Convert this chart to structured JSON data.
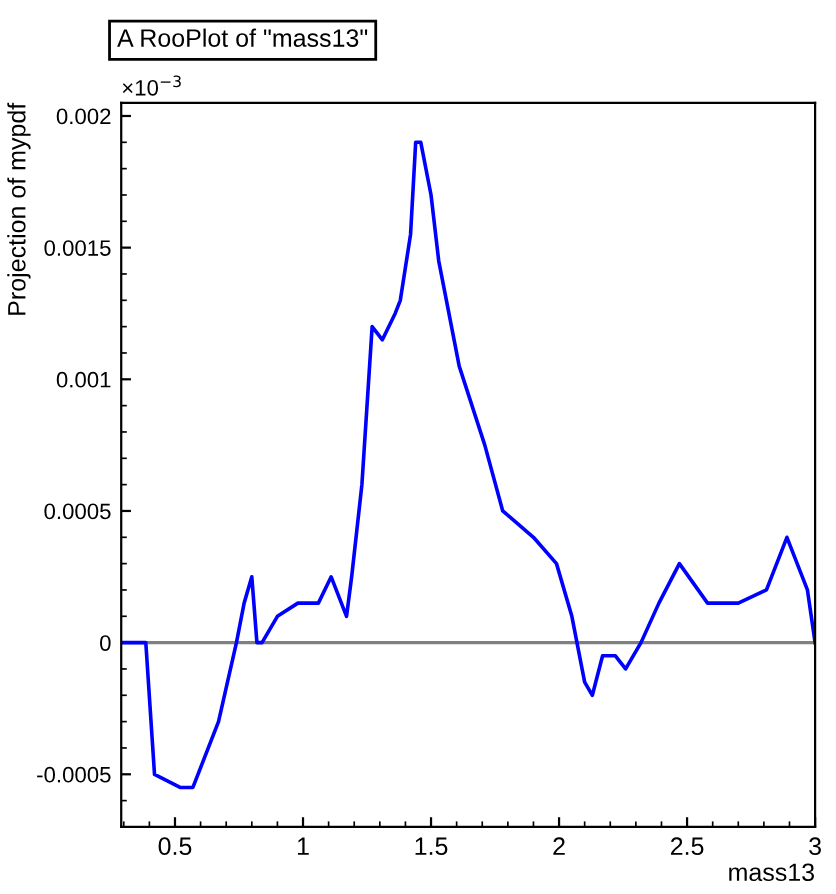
{
  "chart_data": {
    "type": "line",
    "title": "A RooPlot of \"mass13\"",
    "xlabel": "mass13",
    "ylabel": "Projection of mypdf",
    "annotations": [
      "×10$^{−3}$"
    ],
    "x": [
      0.29,
      0.386,
      0.42,
      0.52,
      0.57,
      0.67,
      0.74,
      0.77,
      0.8,
      0.82,
      0.84,
      0.9,
      0.98,
      1.06,
      1.11,
      1.17,
      1.19,
      1.23,
      1.27,
      1.31,
      1.36,
      1.38,
      1.42,
      1.44,
      1.46,
      1.5,
      1.53,
      1.61,
      1.71,
      1.78,
      1.9,
      1.99,
      2.05,
      2.1,
      2.13,
      2.17,
      2.22,
      2.26,
      2.32,
      2.39,
      2.47,
      2.58,
      2.7,
      2.81,
      2.89,
      2.97,
      3.0
    ],
    "series": [
      {
        "color": "#0000ff",
        "values": [
          0,
          0,
          -0.0005,
          -0.00055,
          -0.00055,
          -0.0003,
          0,
          0.00015,
          0.00025,
          0,
          0,
          0.0001,
          0.00015,
          0.00015,
          0.00025,
          0.0001,
          0.00025,
          0.0006,
          0.0012,
          0.00115,
          0.00125,
          0.0013,
          0.00155,
          0.0019,
          0.0019,
          0.0017,
          0.00145,
          0.00105,
          0.00075,
          0.0005,
          0.0004,
          0.0003,
          0.0001,
          -0.00015,
          -0.0002,
          -5e-05,
          -5e-05,
          -0.0001,
          0,
          0.00015,
          0.0003,
          0.00015,
          0.00015,
          0.0002,
          0.0004,
          0.0002,
          0
        ]
      }
    ],
    "xlim": [
      0.29,
      3
    ],
    "ylim": [
      -0.0007,
      0.00205
    ],
    "xticks": [
      0.5,
      1,
      1.5,
      2,
      2.5,
      3
    ],
    "yticks": [
      -0.0005,
      0,
      0.0005,
      0.001,
      0.0015,
      0.002
    ],
    "ref_lines": [
      {
        "axis": "y",
        "value": 0,
        "color": "#808080"
      }
    ],
    "grid": false,
    "legend": false
  }
}
